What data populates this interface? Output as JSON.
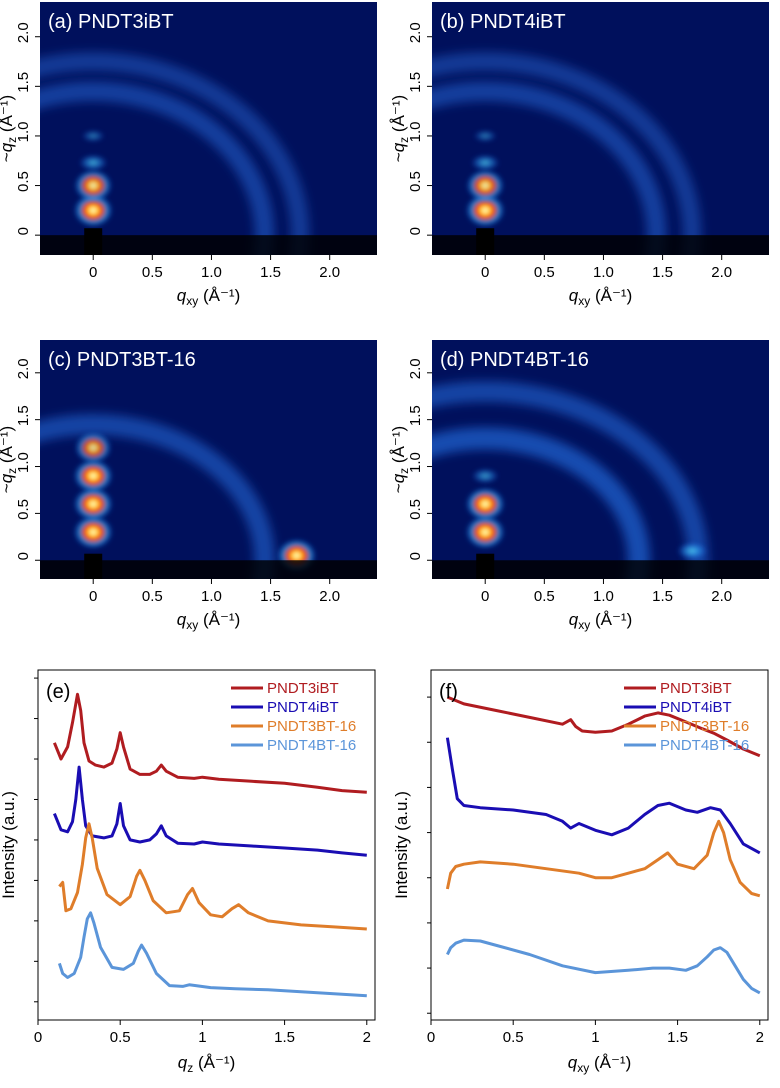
{
  "chart_data": [
    {
      "panel": "(a)",
      "type": "heatmap",
      "title": "PNDT3iBT",
      "xlabel": "q_xy (Å⁻¹)",
      "ylabel": "~q_z (Å⁻¹)",
      "xticks": [
        "0",
        "0.5",
        "1.0",
        "1.5",
        "2.0"
      ],
      "yticks": [
        "0",
        "0.5",
        "1.0",
        "1.5",
        "2.0"
      ],
      "xlim": [
        -0.45,
        2.4
      ],
      "ylim": [
        -0.2,
        2.35
      ],
      "features": [
        {
          "qxy": 0.0,
          "qz": 0.25,
          "intensity": 1.0
        },
        {
          "qxy": 0.0,
          "qz": 0.5,
          "intensity": 0.9
        },
        {
          "qxy": 0.0,
          "qz": 0.73,
          "intensity": 0.6
        },
        {
          "qxy": 0.0,
          "qz": 1.0,
          "intensity": 0.25
        },
        {
          "ring_q": 1.45,
          "intensity": 0.35
        },
        {
          "ring_q": 1.75,
          "intensity": 0.25
        }
      ]
    },
    {
      "panel": "(b)",
      "type": "heatmap",
      "title": "PNDT4iBT",
      "xlabel": "q_xy (Å⁻¹)",
      "ylabel": "~q_z (Å⁻¹)",
      "xticks": [
        "0",
        "0.5",
        "1.0",
        "1.5",
        "2.0"
      ],
      "yticks": [
        "0",
        "0.5",
        "1.0",
        "1.5",
        "2.0"
      ],
      "xlim": [
        -0.45,
        2.4
      ],
      "ylim": [
        -0.2,
        2.35
      ],
      "features": [
        {
          "qxy": 0.0,
          "qz": 0.25,
          "intensity": 1.0
        },
        {
          "qxy": 0.0,
          "qz": 0.5,
          "intensity": 0.9
        },
        {
          "qxy": 0.0,
          "qz": 0.73,
          "intensity": 0.6
        },
        {
          "qxy": 0.0,
          "qz": 1.0,
          "intensity": 0.25
        },
        {
          "ring_q": 1.45,
          "intensity": 0.35
        },
        {
          "ring_q": 1.75,
          "intensity": 0.25
        }
      ]
    },
    {
      "panel": "(c)",
      "type": "heatmap",
      "title": "PNDT3BT-16",
      "xlabel": "q_xy (Å⁻¹)",
      "ylabel": "~q_z (Å⁻¹)",
      "xticks": [
        "0",
        "0.5",
        "1.0",
        "1.5",
        "2.0"
      ],
      "yticks": [
        "0",
        "0.5",
        "1.0",
        "1.5",
        "2.0"
      ],
      "xlim": [
        -0.45,
        2.4
      ],
      "ylim": [
        -0.2,
        2.35
      ],
      "features": [
        {
          "qxy": 0.0,
          "qz": 0.3,
          "intensity": 1.0
        },
        {
          "qxy": 0.0,
          "qz": 0.6,
          "intensity": 1.0
        },
        {
          "qxy": 0.0,
          "qz": 0.9,
          "intensity": 1.0
        },
        {
          "qxy": 0.0,
          "qz": 1.2,
          "intensity": 0.8
        },
        {
          "ring_q": 1.45,
          "intensity": 0.45
        },
        {
          "qxy": 1.72,
          "qz": 0.05,
          "intensity": 1.0
        }
      ]
    },
    {
      "panel": "(d)",
      "type": "heatmap",
      "title": "PNDT4BT-16",
      "xlabel": "q_xy (Å⁻¹)",
      "ylabel": "~q_z (Å⁻¹)",
      "xticks": [
        "0",
        "0.5",
        "1.0",
        "1.5",
        "2.0"
      ],
      "yticks": [
        "0",
        "0.5",
        "1.0",
        "1.5",
        "2.0"
      ],
      "xlim": [
        -0.45,
        2.4
      ],
      "ylim": [
        -0.2,
        2.35
      ],
      "features": [
        {
          "qxy": 0.0,
          "qz": 0.3,
          "intensity": 1.0
        },
        {
          "qxy": 0.0,
          "qz": 0.6,
          "intensity": 1.0
        },
        {
          "qxy": 0.0,
          "qz": 0.9,
          "intensity": 0.5
        },
        {
          "ring_q": 1.3,
          "intensity": 0.6
        },
        {
          "ring_q": 1.8,
          "intensity": 0.45
        },
        {
          "qxy": 1.75,
          "qz": 0.1,
          "intensity": 0.7
        }
      ]
    },
    {
      "panel": "(e)",
      "type": "line",
      "xlabel": "q_z (Å⁻¹)",
      "ylabel": "Intensity (a.u.)",
      "xticks": [
        "0",
        "0.5",
        "1",
        "1.5",
        "2"
      ],
      "xlim": [
        0,
        2.05
      ],
      "legend": "top-right",
      "series": [
        {
          "name": "PNDT3iBT",
          "color": "#b01c20",
          "x": [
            0.1,
            0.14,
            0.18,
            0.21,
            0.24,
            0.26,
            0.28,
            0.31,
            0.35,
            0.4,
            0.45,
            0.48,
            0.5,
            0.52,
            0.56,
            0.62,
            0.68,
            0.72,
            0.75,
            0.78,
            0.85,
            0.95,
            1.0,
            1.1,
            1.3,
            1.5,
            1.7,
            1.85,
            2.0
          ],
          "y": [
            6.4,
            6.0,
            6.3,
            6.9,
            7.6,
            7.2,
            6.4,
            5.95,
            5.85,
            5.8,
            5.9,
            6.25,
            6.65,
            6.3,
            5.75,
            5.62,
            5.62,
            5.7,
            5.85,
            5.7,
            5.55,
            5.52,
            5.55,
            5.5,
            5.45,
            5.4,
            5.3,
            5.22,
            5.18
          ]
        },
        {
          "name": "PNDT4iBT",
          "color": "#1a0db3",
          "x": [
            0.1,
            0.14,
            0.18,
            0.21,
            0.23,
            0.25,
            0.27,
            0.29,
            0.33,
            0.4,
            0.45,
            0.48,
            0.5,
            0.52,
            0.56,
            0.62,
            0.68,
            0.72,
            0.75,
            0.78,
            0.85,
            0.95,
            1.0,
            1.1,
            1.3,
            1.5,
            1.7,
            1.85,
            2.0
          ],
          "y": [
            4.65,
            4.25,
            4.2,
            4.45,
            5.0,
            5.8,
            5.0,
            4.35,
            4.1,
            4.05,
            4.1,
            4.4,
            4.9,
            4.35,
            4.0,
            3.95,
            4.0,
            4.15,
            4.35,
            4.1,
            3.92,
            3.9,
            3.95,
            3.9,
            3.85,
            3.8,
            3.75,
            3.68,
            3.62
          ]
        },
        {
          "name": "PNDT3BT-16",
          "color": "#df7d2a",
          "x": [
            0.13,
            0.15,
            0.17,
            0.2,
            0.24,
            0.27,
            0.29,
            0.31,
            0.33,
            0.36,
            0.42,
            0.5,
            0.56,
            0.6,
            0.62,
            0.65,
            0.7,
            0.78,
            0.86,
            0.91,
            0.94,
            0.98,
            1.05,
            1.12,
            1.18,
            1.22,
            1.28,
            1.4,
            1.6,
            1.8,
            2.0
          ],
          "y": [
            2.85,
            2.95,
            2.25,
            2.3,
            2.7,
            3.4,
            4.05,
            4.4,
            4.05,
            3.3,
            2.65,
            2.4,
            2.6,
            3.1,
            3.25,
            3.0,
            2.5,
            2.2,
            2.25,
            2.65,
            2.8,
            2.45,
            2.15,
            2.1,
            2.3,
            2.4,
            2.2,
            2.0,
            1.9,
            1.85,
            1.8
          ]
        },
        {
          "name": "PNDT4BT-16",
          "color": "#5b95d9",
          "x": [
            0.13,
            0.15,
            0.18,
            0.22,
            0.26,
            0.28,
            0.3,
            0.32,
            0.34,
            0.38,
            0.45,
            0.52,
            0.58,
            0.61,
            0.63,
            0.66,
            0.72,
            0.8,
            0.88,
            0.92,
            0.96,
            1.05,
            1.2,
            1.4,
            1.6,
            1.8,
            2.0
          ],
          "y": [
            0.95,
            0.7,
            0.6,
            0.7,
            1.1,
            1.6,
            2.05,
            2.2,
            1.95,
            1.35,
            0.85,
            0.8,
            0.95,
            1.25,
            1.4,
            1.2,
            0.7,
            0.4,
            0.38,
            0.42,
            0.4,
            0.35,
            0.32,
            0.3,
            0.25,
            0.2,
            0.15
          ]
        }
      ]
    },
    {
      "panel": "(f)",
      "type": "line",
      "xlabel": "q_xy (Å⁻¹)",
      "ylabel": "Intensity (a.u.)",
      "xticks": [
        "0",
        "0.5",
        "1",
        "1.5",
        "2"
      ],
      "xlim": [
        0,
        2.05
      ],
      "legend": "top-right",
      "series": [
        {
          "name": "PNDT3iBT",
          "color": "#b01c20",
          "x": [
            0.1,
            0.2,
            0.4,
            0.6,
            0.8,
            0.85,
            0.88,
            0.92,
            1.0,
            1.1,
            1.2,
            1.3,
            1.38,
            1.45,
            1.55,
            1.65,
            1.72,
            1.8,
            1.9,
            2.0
          ],
          "y": [
            7.0,
            6.85,
            6.7,
            6.55,
            6.4,
            6.5,
            6.35,
            6.25,
            6.22,
            6.25,
            6.4,
            6.58,
            6.65,
            6.6,
            6.45,
            6.3,
            6.2,
            6.05,
            5.85,
            5.7
          ]
        },
        {
          "name": "PNDT4iBT",
          "color": "#1a0db3",
          "x": [
            0.1,
            0.13,
            0.16,
            0.2,
            0.3,
            0.5,
            0.7,
            0.8,
            0.85,
            0.9,
            1.0,
            1.1,
            1.2,
            1.3,
            1.38,
            1.45,
            1.55,
            1.62,
            1.7,
            1.76,
            1.82,
            1.9,
            2.0
          ],
          "y": [
            6.1,
            5.4,
            4.75,
            4.6,
            4.55,
            4.5,
            4.4,
            4.25,
            4.1,
            4.2,
            4.05,
            3.95,
            4.1,
            4.4,
            4.6,
            4.65,
            4.5,
            4.45,
            4.55,
            4.5,
            4.2,
            3.75,
            3.55
          ]
        },
        {
          "name": "PNDT3BT-16",
          "color": "#df7d2a",
          "x": [
            0.1,
            0.12,
            0.15,
            0.2,
            0.3,
            0.5,
            0.7,
            0.9,
            1.0,
            1.1,
            1.2,
            1.3,
            1.38,
            1.44,
            1.5,
            1.6,
            1.68,
            1.72,
            1.75,
            1.78,
            1.82,
            1.88,
            1.95,
            2.0
          ],
          "y": [
            2.75,
            3.1,
            3.25,
            3.3,
            3.35,
            3.3,
            3.2,
            3.1,
            3.0,
            3.0,
            3.1,
            3.2,
            3.4,
            3.55,
            3.3,
            3.2,
            3.5,
            4.0,
            4.25,
            4.0,
            3.4,
            2.9,
            2.65,
            2.6
          ]
        },
        {
          "name": "PNDT4BT-16",
          "color": "#5b95d9",
          "x": [
            0.1,
            0.12,
            0.15,
            0.2,
            0.3,
            0.4,
            0.6,
            0.8,
            1.0,
            1.2,
            1.35,
            1.45,
            1.55,
            1.62,
            1.68,
            1.72,
            1.76,
            1.8,
            1.85,
            1.9,
            1.95,
            2.0
          ],
          "y": [
            1.3,
            1.45,
            1.55,
            1.62,
            1.6,
            1.5,
            1.3,
            1.05,
            0.9,
            0.95,
            1.0,
            1.0,
            0.95,
            1.05,
            1.25,
            1.4,
            1.45,
            1.35,
            1.05,
            0.75,
            0.55,
            0.45
          ]
        }
      ]
    }
  ]
}
